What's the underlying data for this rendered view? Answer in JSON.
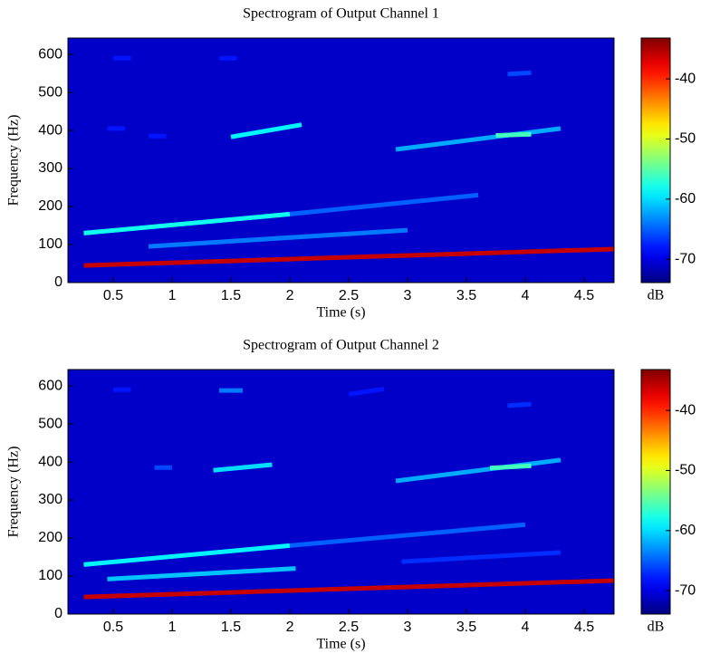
{
  "chart_data": [
    {
      "type": "spectrogram",
      "title": "Spectrogram of Output Channel 1",
      "xlabel": "Time (s)",
      "ylabel": "Frequency (Hz)",
      "colorbar_label": "dB",
      "xlim": [
        0.115,
        4.754
      ],
      "ylim": [
        0,
        643
      ],
      "xticks": [
        0.5,
        1,
        1.5,
        2,
        2.5,
        3,
        3.5,
        4,
        4.5
      ],
      "yticks": [
        0,
        100,
        200,
        300,
        400,
        500,
        600
      ],
      "clim": [
        -73.9,
        -33.2
      ],
      "cticks": [
        -40,
        -50,
        -60,
        -70
      ],
      "background_db": -71,
      "tracks": [
        {
          "x": [
            0.25,
            4.75
          ],
          "values": [
            45,
            88
          ],
          "db": -36
        },
        {
          "x": [
            0.25,
            2.0
          ],
          "values": [
            130,
            180
          ],
          "db": -58
        },
        {
          "x": [
            2.0,
            3.6
          ],
          "values": [
            180,
            230
          ],
          "db": -65
        },
        {
          "x": [
            0.8,
            3.0
          ],
          "values": [
            95,
            138
          ],
          "db": -64
        },
        {
          "x": [
            1.5,
            2.1
          ],
          "values": [
            383,
            415
          ],
          "db": -59
        },
        {
          "x": [
            2.9,
            4.3
          ],
          "values": [
            350,
            405
          ],
          "db": -62
        },
        {
          "x": [
            3.75,
            4.05
          ],
          "values": [
            387,
            390
          ],
          "db": -56
        },
        {
          "x": [
            0.45,
            0.6
          ],
          "values": [
            405,
            405
          ],
          "db": -68
        },
        {
          "x": [
            0.8,
            0.95
          ],
          "values": [
            385,
            385
          ],
          "db": -68
        },
        {
          "x": [
            0.5,
            0.65
          ],
          "values": [
            590,
            590
          ],
          "db": -68
        },
        {
          "x": [
            1.4,
            1.55
          ],
          "values": [
            590,
            590
          ],
          "db": -68
        },
        {
          "x": [
            3.85,
            4.05
          ],
          "values": [
            548,
            552
          ],
          "db": -66
        }
      ]
    },
    {
      "type": "spectrogram",
      "title": "Spectrogram of Output Channel 2",
      "xlabel": "Time (s)",
      "ylabel": "Frequency (Hz)",
      "colorbar_label": "dB",
      "xlim": [
        0.115,
        4.754
      ],
      "ylim": [
        0,
        643
      ],
      "xticks": [
        0.5,
        1,
        1.5,
        2,
        2.5,
        3,
        3.5,
        4,
        4.5
      ],
      "yticks": [
        0,
        100,
        200,
        300,
        400,
        500,
        600
      ],
      "clim": [
        -73.9,
        -33.2
      ],
      "cticks": [
        -40,
        -50,
        -60,
        -70
      ],
      "background_db": -71,
      "tracks": [
        {
          "x": [
            0.25,
            4.75
          ],
          "values": [
            45,
            88
          ],
          "db": -36
        },
        {
          "x": [
            0.25,
            2.0
          ],
          "values": [
            130,
            180
          ],
          "db": -59
        },
        {
          "x": [
            2.0,
            4.0
          ],
          "values": [
            180,
            235
          ],
          "db": -65
        },
        {
          "x": [
            0.45,
            2.05
          ],
          "values": [
            92,
            120
          ],
          "db": -61
        },
        {
          "x": [
            2.95,
            4.3
          ],
          "values": [
            138,
            162
          ],
          "db": -67
        },
        {
          "x": [
            1.35,
            1.85
          ],
          "values": [
            378,
            393
          ],
          "db": -60
        },
        {
          "x": [
            2.9,
            4.3
          ],
          "values": [
            350,
            405
          ],
          "db": -62
        },
        {
          "x": [
            3.7,
            4.05
          ],
          "values": [
            384,
            390
          ],
          "db": -56
        },
        {
          "x": [
            0.85,
            1.0
          ],
          "values": [
            385,
            385
          ],
          "db": -66
        },
        {
          "x": [
            0.5,
            0.65
          ],
          "values": [
            590,
            590
          ],
          "db": -68
        },
        {
          "x": [
            1.4,
            1.6
          ],
          "values": [
            588,
            588
          ],
          "db": -64
        },
        {
          "x": [
            2.5,
            2.8
          ],
          "values": [
            578,
            592
          ],
          "db": -68
        },
        {
          "x": [
            3.85,
            4.05
          ],
          "values": [
            548,
            552
          ],
          "db": -67
        }
      ]
    }
  ]
}
